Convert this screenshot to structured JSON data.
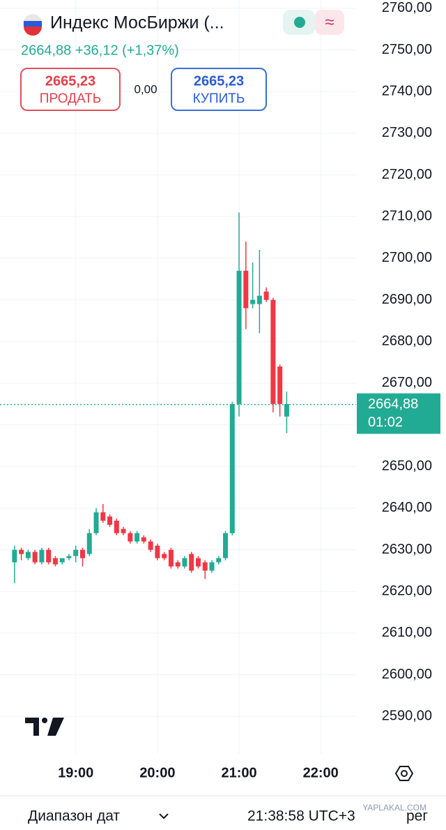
{
  "header": {
    "title": "Индекс МосБиржи (...",
    "quote": "2664,88 +36,12 (+1,37%)",
    "sell_price": "2665,23",
    "sell_label": "ПРОДАТЬ",
    "spread": "0,00",
    "buy_price": "2665,23",
    "buy_label": "КУПИТЬ"
  },
  "chart_data": {
    "type": "candlestick",
    "up_color": "#22ab94",
    "down_color": "#f23645",
    "grid": true,
    "x": [
      "18:15",
      "18:20",
      "18:25",
      "18:30",
      "18:35",
      "18:40",
      "18:45",
      "18:50",
      "18:55",
      "19:00",
      "19:05",
      "19:10",
      "19:15",
      "19:20",
      "19:25",
      "19:30",
      "19:35",
      "19:40",
      "19:45",
      "19:50",
      "19:55",
      "20:00",
      "20:05",
      "20:10",
      "20:15",
      "20:20",
      "20:25",
      "20:30",
      "20:35",
      "20:40",
      "20:45",
      "20:50",
      "20:55",
      "21:00",
      "21:05",
      "21:10",
      "21:15",
      "21:20",
      "21:25",
      "21:30",
      "21:35"
    ],
    "open": [
      2627,
      2630,
      2628,
      2629.5,
      2627,
      2630,
      2628,
      2627,
      2628,
      2628.5,
      2630,
      2629,
      2634,
      2639,
      2638,
      2637,
      2635,
      2634,
      2632,
      2633,
      2632,
      2631,
      2629,
      2630,
      2627,
      2626,
      2629,
      2628,
      2627,
      2625,
      2627,
      2628,
      2634,
      2665,
      2697,
      2689,
      2689,
      2692,
      2690,
      2674,
      2662
    ],
    "high": [
      2631,
      2630.5,
      2630,
      2630,
      2630.5,
      2630.5,
      2628.5,
      2628,
      2629,
      2631,
      2630.5,
      2635,
      2640,
      2641,
      2638.5,
      2637.5,
      2635.5,
      2634.5,
      2634.5,
      2633.5,
      2632.5,
      2631.5,
      2629.5,
      2630.5,
      2627.5,
      2628.5,
      2629.5,
      2628.5,
      2627.5,
      2627.5,
      2628.5,
      2634.5,
      2665.5,
      2711,
      2704,
      2699,
      2702,
      2693,
      2690.5,
      2674.5,
      2668
    ],
    "low": [
      2622,
      2627.5,
      2627.5,
      2626.5,
      2626.5,
      2626.5,
      2626,
      2626.5,
      2627.5,
      2627,
      2626,
      2628.5,
      2633.5,
      2636.5,
      2635.5,
      2633.5,
      2633.5,
      2631.5,
      2631.5,
      2631.5,
      2629.5,
      2627.5,
      2627.5,
      2625.5,
      2625.5,
      2625.5,
      2624.5,
      2625.5,
      2623,
      2624.5,
      2626.5,
      2627.5,
      2633.5,
      2662,
      2683,
      2688,
      2682,
      2689.5,
      2663,
      2662,
      2658
    ],
    "close": [
      2630,
      2629,
      2629.5,
      2627,
      2630,
      2627,
      2626.5,
      2628,
      2628.5,
      2630,
      2628,
      2634,
      2639,
      2637,
      2636,
      2634,
      2634,
      2632,
      2634,
      2632,
      2630,
      2628,
      2628,
      2626,
      2626,
      2628,
      2625,
      2626,
      2625,
      2627,
      2628,
      2634,
      2665,
      2697,
      2688,
      2690,
      2691,
      2690,
      2665,
      2665,
      2665
    ],
    "xlim": [
      "18:12",
      "22:26"
    ],
    "xticks": [
      "19:00",
      "20:00",
      "21:00",
      "22:00"
    ],
    "ylim": [
      2581,
      2762
    ],
    "yticks": [
      {
        "value": 2590,
        "label": "2590,00"
      },
      {
        "value": 2600,
        "label": "2600,00"
      },
      {
        "value": 2610,
        "label": "2610,00"
      },
      {
        "value": 2620,
        "label": "2620,00"
      },
      {
        "value": 2630,
        "label": "2630,00"
      },
      {
        "value": 2640,
        "label": "2640,00"
      },
      {
        "value": 2650,
        "label": "2650,00"
      },
      {
        "value": 2660,
        "label": "2660,00"
      },
      {
        "value": 2670,
        "label": "2670,00"
      },
      {
        "value": 2680,
        "label": "2680,00"
      },
      {
        "value": 2690,
        "label": "2690,00"
      },
      {
        "value": 2700,
        "label": "2700,00"
      },
      {
        "value": 2710,
        "label": "2710,00"
      },
      {
        "value": 2720,
        "label": "2720,00"
      },
      {
        "value": 2730,
        "label": "2730,00"
      },
      {
        "value": 2740,
        "label": "2740,00"
      },
      {
        "value": 2750,
        "label": "2750,00"
      },
      {
        "value": 2760,
        "label": "2760,00"
      }
    ],
    "last_price": {
      "value": 2664.88,
      "label": "2664,88"
    },
    "countdown": "01:02"
  },
  "footer": {
    "range": "Диапазон дат",
    "time": "21:38:58 UTC+3",
    "extra": "рег",
    "watermark": "YAPLAKAL.COM"
  }
}
